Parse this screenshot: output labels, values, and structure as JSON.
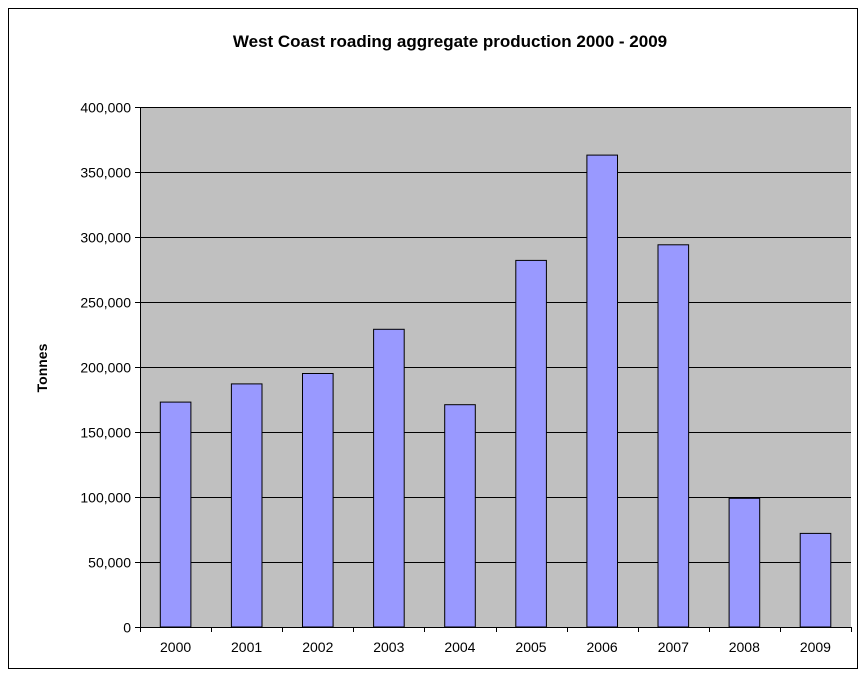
{
  "chart_data": {
    "type": "bar",
    "title": "West Coast roading aggregate production 2000 - 2009",
    "xlabel": "",
    "ylabel": "Tonnes",
    "categories": [
      "2000",
      "2001",
      "2002",
      "2003",
      "2004",
      "2005",
      "2006",
      "2007",
      "2008",
      "2009"
    ],
    "values": [
      173000,
      187000,
      195000,
      229000,
      171000,
      282000,
      363000,
      294000,
      99000,
      72000
    ],
    "ylim": [
      0,
      400000
    ],
    "yticks": [
      0,
      50000,
      100000,
      150000,
      200000,
      250000,
      300000,
      350000,
      400000
    ],
    "ytick_labels": [
      "0",
      "50,000",
      "100,000",
      "150,000",
      "200,000",
      "250,000",
      "300,000",
      "350,000",
      "400,000"
    ],
    "grid": true,
    "legend": "none",
    "colors": {
      "bar_fill": "#9999ff",
      "bar_stroke": "#000000",
      "plot_background": "#c0c0c0",
      "gridline": "#000000"
    }
  }
}
